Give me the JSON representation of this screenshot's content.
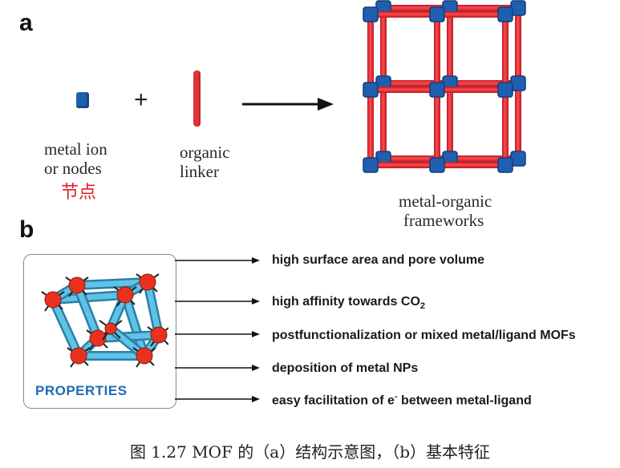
{
  "panel_a": {
    "letter": "a",
    "metal_label_line1": "metal ion",
    "metal_label_line2": "or nodes",
    "metal_label_cn": "节点",
    "plus": "+",
    "linker_label_line1": "organic",
    "linker_label_line2": "linker",
    "framework_label_line1": "metal-organic",
    "framework_label_line2": "frameworks"
  },
  "panel_b": {
    "letter": "b",
    "box_title": "PROPERTIES",
    "properties": [
      {
        "text": "high surface area and pore volume"
      },
      {
        "text": "high affinity towards CO",
        "sub": "2"
      },
      {
        "text": "postfunctionalization or mixed metal/ligand MOFs"
      },
      {
        "text": "deposition of metal NPs"
      },
      {
        "text": "easy facilitation of e",
        "sup": "-",
        "rest": " between metal-ligand"
      }
    ]
  },
  "caption": "图 1.27 MOF 的（a）结构示意图，（b）基本特征",
  "colors": {
    "node": "#1f5fb0",
    "linker": "#e03238",
    "arrow": "#111111",
    "properties_title": "#1f6bb5",
    "cn_label": "#e0202a"
  }
}
